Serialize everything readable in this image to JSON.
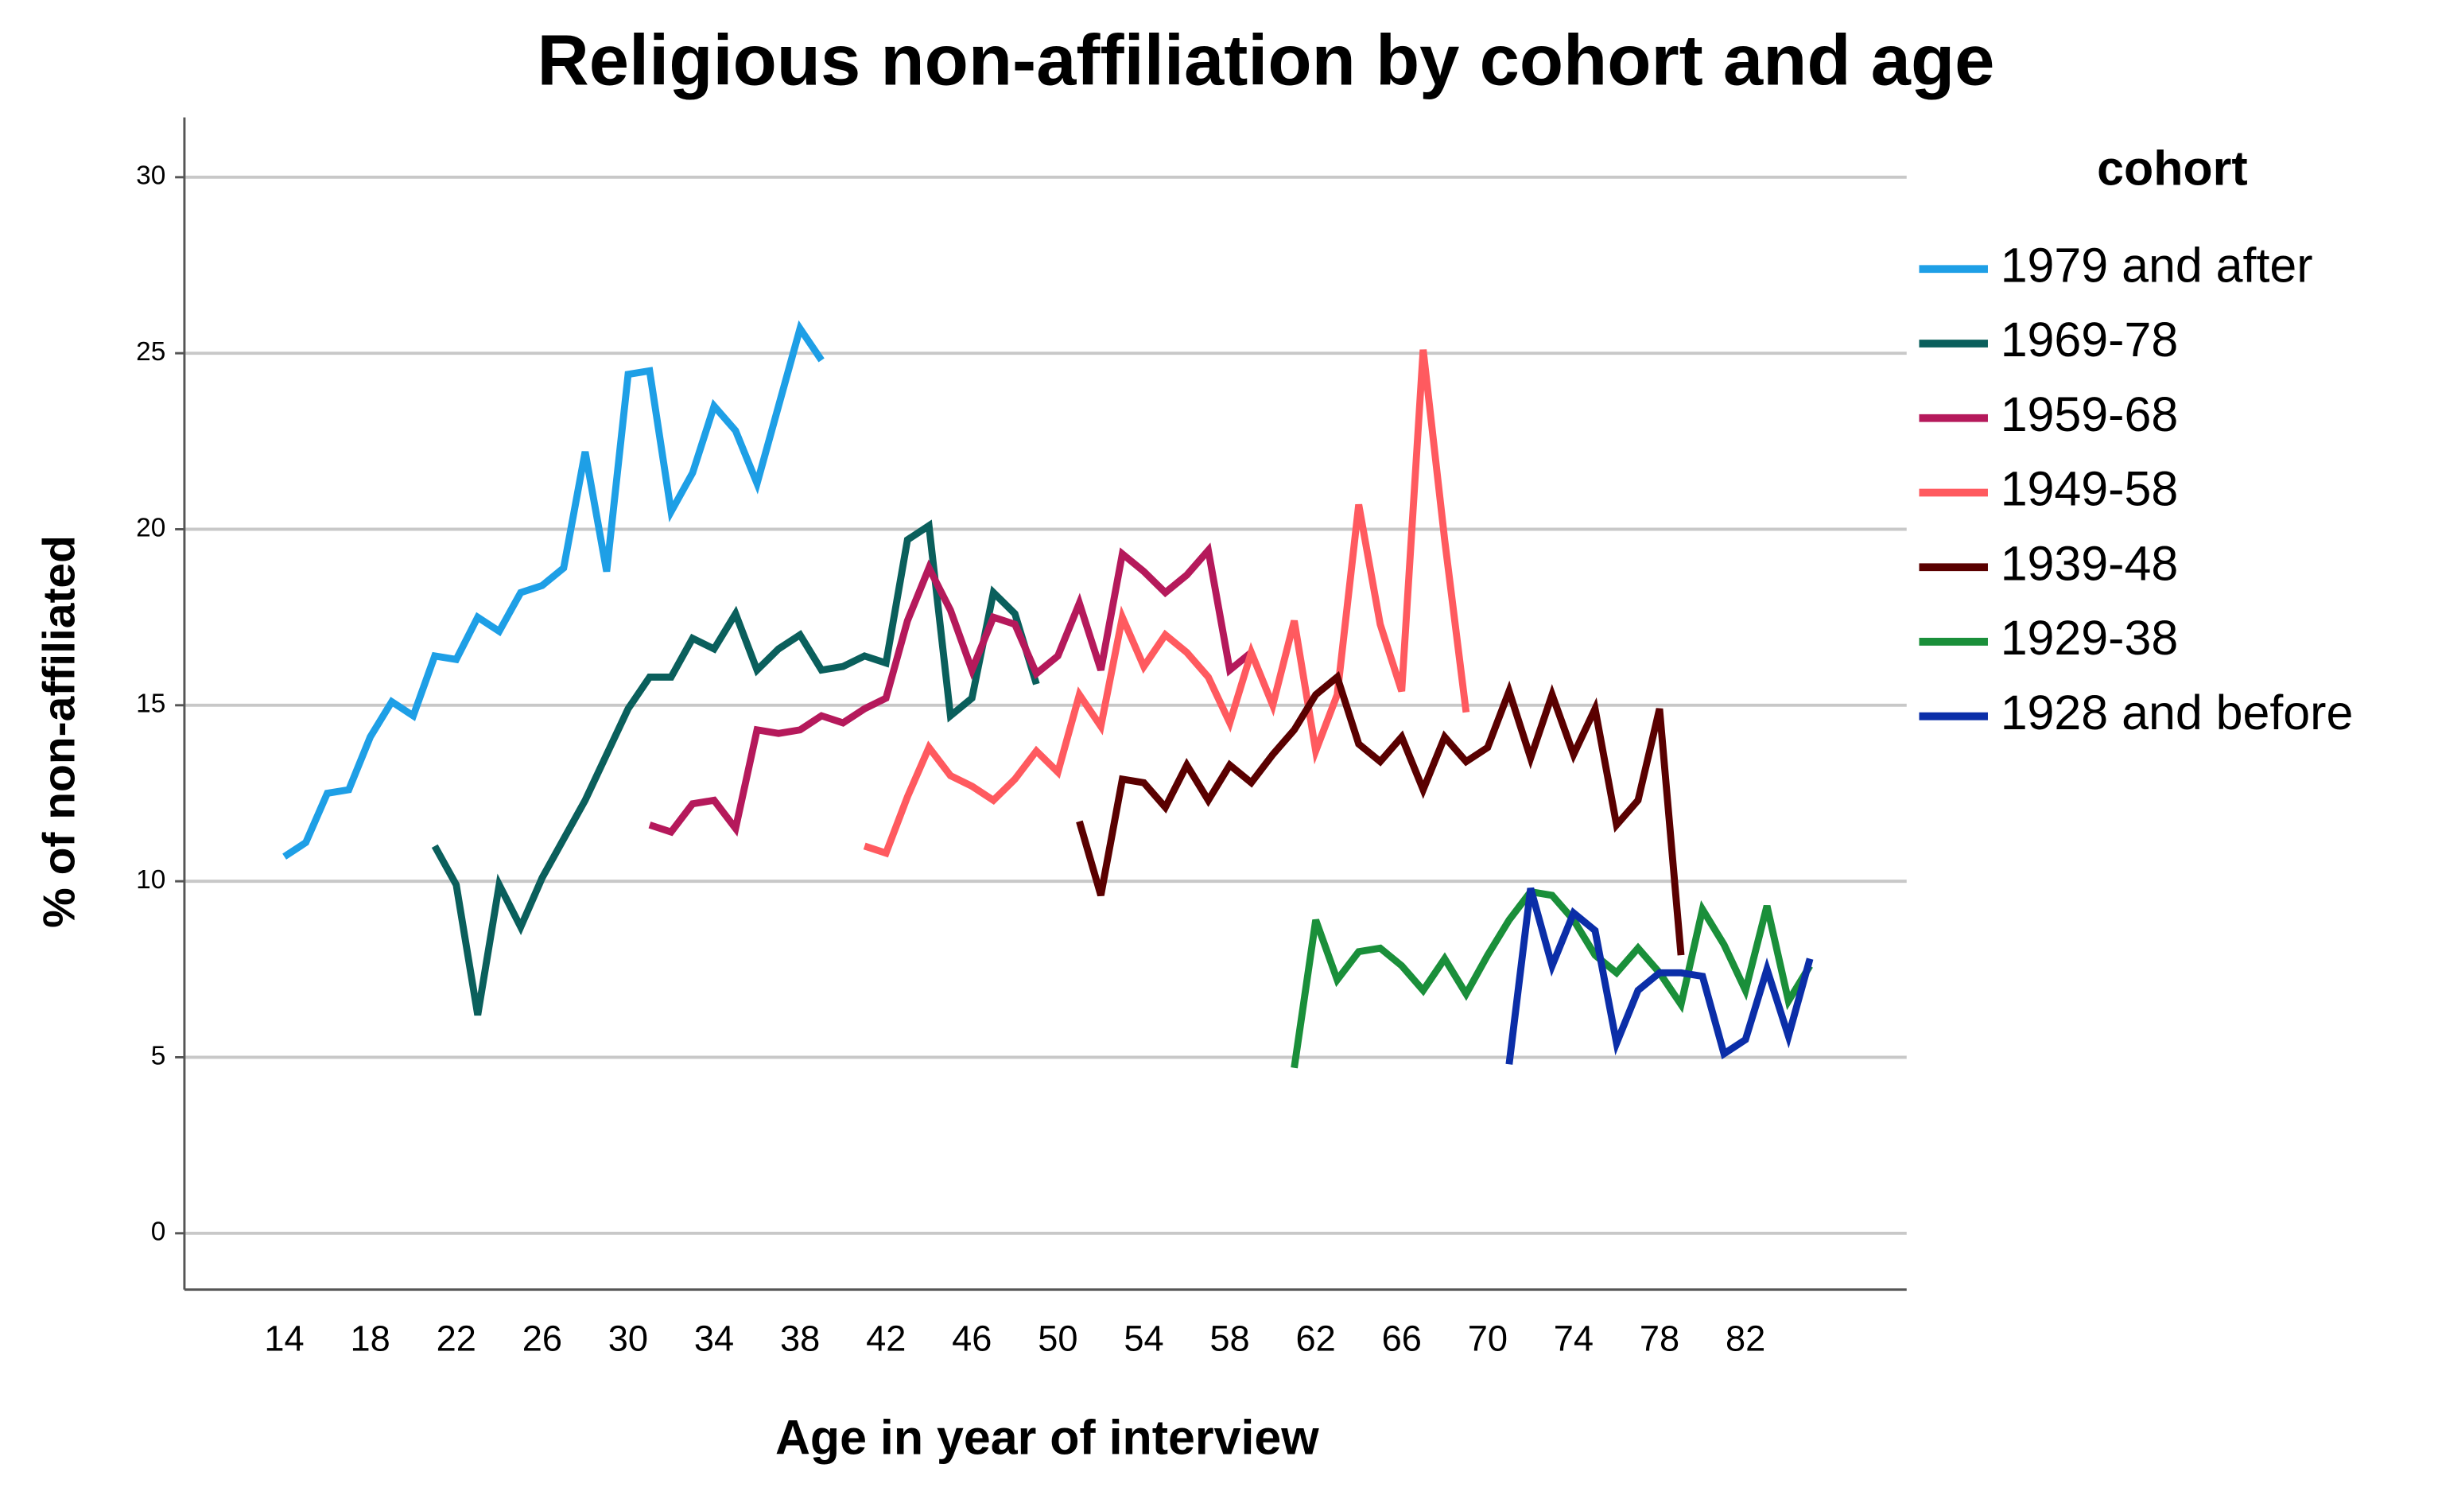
{
  "chart_data": {
    "type": "line",
    "title": "Religious non-affiliation by cohort and age",
    "x_label": "Age in year of interview",
    "y_label": "% of non-affiliated",
    "legend_title": "cohort",
    "legend": "right",
    "grid": true,
    "xlim": [
      9.35,
      89.5
    ],
    "xticks": [
      14,
      18,
      22,
      26,
      30,
      34,
      38,
      42,
      46,
      50,
      54,
      58,
      62,
      66,
      70,
      74,
      78,
      82
    ],
    "ylim": [
      -1.6,
      31.7
    ],
    "yticks": [
      0,
      5,
      10,
      15,
      20,
      25,
      30
    ],
    "series": [
      {
        "name": "1979 and after",
        "color": "#1e9fe6",
        "x": [
          14,
          15,
          16,
          17,
          18,
          19,
          20,
          21,
          22,
          23,
          24,
          25,
          26,
          27,
          28,
          29,
          30,
          31,
          32,
          33,
          34,
          35,
          36,
          37,
          38,
          39
        ],
        "values": [
          10.7,
          11.1,
          12.5,
          12.6,
          14.1,
          15.1,
          14.7,
          16.4,
          16.3,
          17.5,
          17.1,
          18.2,
          18.4,
          18.9,
          22.2,
          18.8,
          24.4,
          24.5,
          20.5,
          21.6,
          23.5,
          22.8,
          21.3,
          23.5,
          25.7,
          24.8
        ]
      },
      {
        "name": "1969-78",
        "color": "#0a5f5c",
        "x": [
          21,
          22,
          23,
          24,
          25,
          26,
          27,
          28,
          29,
          30,
          31,
          32,
          33,
          34,
          35,
          36,
          37,
          38,
          39,
          40,
          41,
          42,
          43,
          44,
          45,
          46,
          47,
          48,
          49
        ],
        "values": [
          11.0,
          9.9,
          6.2,
          9.9,
          8.7,
          10.1,
          11.2,
          12.3,
          13.6,
          14.9,
          15.8,
          15.8,
          16.9,
          16.6,
          17.6,
          16.0,
          16.6,
          17.0,
          16.0,
          16.1,
          16.4,
          16.2,
          19.7,
          20.1,
          14.7,
          15.2,
          18.2,
          17.6,
          15.6
        ]
      },
      {
        "name": "1959-68",
        "color": "#b5195b",
        "x": [
          31,
          32,
          33,
          34,
          35,
          36,
          37,
          38,
          39,
          40,
          41,
          42,
          43,
          44,
          45,
          46,
          47,
          48,
          49,
          50,
          51,
          52,
          53,
          54,
          55,
          56,
          57,
          58,
          59
        ],
        "values": [
          11.6,
          11.4,
          12.2,
          12.3,
          11.5,
          14.3,
          14.2,
          14.3,
          14.7,
          14.5,
          14.9,
          15.2,
          17.4,
          18.9,
          17.7,
          16.0,
          17.5,
          17.3,
          15.9,
          16.4,
          17.9,
          16.0,
          19.3,
          18.8,
          18.2,
          18.7,
          19.4,
          16.0,
          16.5
        ]
      },
      {
        "name": "1949-58",
        "color": "#ff5a5f",
        "x": [
          41,
          42,
          43,
          44,
          45,
          46,
          47,
          48,
          49,
          50,
          51,
          52,
          53,
          54,
          55,
          56,
          57,
          58,
          59,
          60,
          61,
          62,
          63,
          64,
          65,
          66,
          67,
          68,
          69
        ],
        "values": [
          11.0,
          10.8,
          12.4,
          13.8,
          13.0,
          12.7,
          12.3,
          12.9,
          13.7,
          13.1,
          15.3,
          14.4,
          17.5,
          16.1,
          17.0,
          16.5,
          15.8,
          14.5,
          16.5,
          15.0,
          17.4,
          13.7,
          15.3,
          20.7,
          17.3,
          15.4,
          25.1,
          19.7,
          14.8
        ]
      },
      {
        "name": "1939-48",
        "color": "#5a0000",
        "x": [
          51,
          52,
          53,
          54,
          55,
          56,
          57,
          58,
          59,
          60,
          61,
          62,
          63,
          64,
          65,
          66,
          67,
          68,
          69,
          70,
          71,
          72,
          73,
          74,
          75,
          76,
          77,
          78,
          79
        ],
        "values": [
          11.7,
          9.6,
          12.9,
          12.8,
          12.1,
          13.3,
          12.3,
          13.3,
          12.8,
          13.6,
          14.3,
          15.3,
          15.8,
          13.9,
          13.4,
          14.1,
          12.6,
          14.1,
          13.4,
          13.8,
          15.4,
          13.5,
          15.3,
          13.6,
          14.9,
          11.6,
          12.3,
          14.9,
          7.9
        ]
      },
      {
        "name": "1929-38",
        "color": "#1a8f3a",
        "x": [
          61,
          62,
          63,
          64,
          65,
          66,
          67,
          68,
          69,
          70,
          71,
          72,
          73,
          74,
          75,
          76,
          77,
          78,
          79,
          80,
          81,
          82,
          83,
          84,
          85
        ],
        "values": [
          4.7,
          8.9,
          7.2,
          8.0,
          8.1,
          7.6,
          6.9,
          7.8,
          6.8,
          7.9,
          8.9,
          9.7,
          9.6,
          8.9,
          7.9,
          7.4,
          8.1,
          7.4,
          6.5,
          9.2,
          8.2,
          6.9,
          9.3,
          6.6,
          7.6
        ]
      },
      {
        "name": "1928 and before",
        "color": "#0b2ea8",
        "x": [
          71,
          72,
          73,
          74,
          75,
          76,
          77,
          78,
          79,
          80,
          81,
          82,
          83,
          84,
          85
        ],
        "values": [
          4.8,
          9.8,
          7.6,
          9.1,
          8.6,
          5.4,
          6.9,
          7.4,
          7.4,
          7.3,
          5.1,
          5.5,
          7.5,
          5.6,
          7.8
        ]
      }
    ]
  }
}
